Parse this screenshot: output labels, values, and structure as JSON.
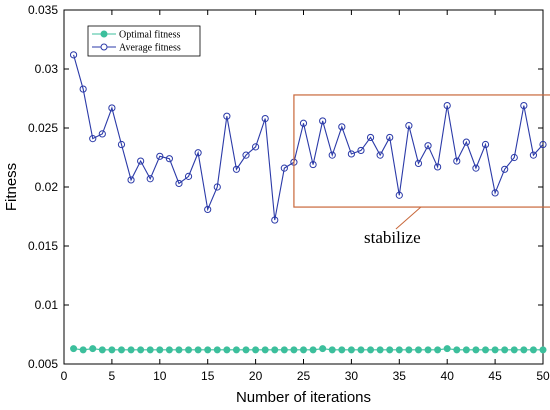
{
  "chart_data": {
    "type": "line",
    "xlabel": "Number of iterations",
    "ylabel": "Fitness",
    "xlim": [
      0,
      50
    ],
    "ylim": [
      0.005,
      0.035
    ],
    "xticks": [
      0,
      5,
      10,
      15,
      20,
      25,
      30,
      35,
      40,
      45,
      50
    ],
    "yticks": [
      0.005,
      0.01,
      0.015,
      0.02,
      0.025,
      0.03,
      0.035
    ],
    "ytick_labels": [
      "0.005",
      "0.01",
      "0.015",
      "0.02",
      "0.025",
      "0.03",
      "0.035"
    ],
    "legend_position": "top-left",
    "grid": false,
    "x": [
      1,
      2,
      3,
      4,
      5,
      6,
      7,
      8,
      9,
      10,
      11,
      12,
      13,
      14,
      15,
      16,
      17,
      18,
      19,
      20,
      21,
      22,
      23,
      24,
      25,
      26,
      27,
      28,
      29,
      30,
      31,
      32,
      33,
      34,
      35,
      36,
      37,
      38,
      39,
      40,
      41,
      42,
      43,
      44,
      45,
      46,
      47,
      48,
      49,
      50
    ],
    "series": [
      {
        "name": "Optimal fitness",
        "color": "#3cbf9c",
        "marker": "filled-circle",
        "values": [
          0.0063,
          0.0062,
          0.0063,
          0.0062,
          0.0062,
          0.0062,
          0.0062,
          0.0062,
          0.0062,
          0.0062,
          0.0062,
          0.0062,
          0.0062,
          0.0062,
          0.0062,
          0.0062,
          0.0062,
          0.0062,
          0.0062,
          0.0062,
          0.0062,
          0.0062,
          0.0062,
          0.0062,
          0.0062,
          0.0062,
          0.0063,
          0.0062,
          0.0062,
          0.0062,
          0.0062,
          0.0062,
          0.0062,
          0.0062,
          0.0062,
          0.0062,
          0.0062,
          0.0062,
          0.0062,
          0.0063,
          0.0062,
          0.0062,
          0.0062,
          0.0062,
          0.0062,
          0.0062,
          0.0062,
          0.0062,
          0.0062,
          0.0062
        ]
      },
      {
        "name": "Average fitness",
        "color": "#2b3aa8",
        "marker": "open-circle",
        "values": [
          0.0312,
          0.0283,
          0.0241,
          0.0245,
          0.0267,
          0.0236,
          0.0206,
          0.0222,
          0.0207,
          0.0226,
          0.0224,
          0.0203,
          0.0209,
          0.0229,
          0.0181,
          0.02,
          0.026,
          0.0215,
          0.0227,
          0.0234,
          0.0258,
          0.0172,
          0.0216,
          0.0221,
          0.0254,
          0.0219,
          0.0256,
          0.0227,
          0.0251,
          0.0228,
          0.0231,
          0.0242,
          0.0227,
          0.0242,
          0.0193,
          0.0252,
          0.022,
          0.0235,
          0.0217,
          0.0269,
          0.0222,
          0.0238,
          0.0216,
          0.0236,
          0.0195,
          0.0215,
          0.0225,
          0.0269,
          0.0227,
          0.0236
        ]
      }
    ],
    "annotation": {
      "text": "stabilize",
      "box_x": [
        24,
        51
      ],
      "box_y": [
        0.0183,
        0.0278
      ],
      "color": "#c8673a"
    }
  }
}
